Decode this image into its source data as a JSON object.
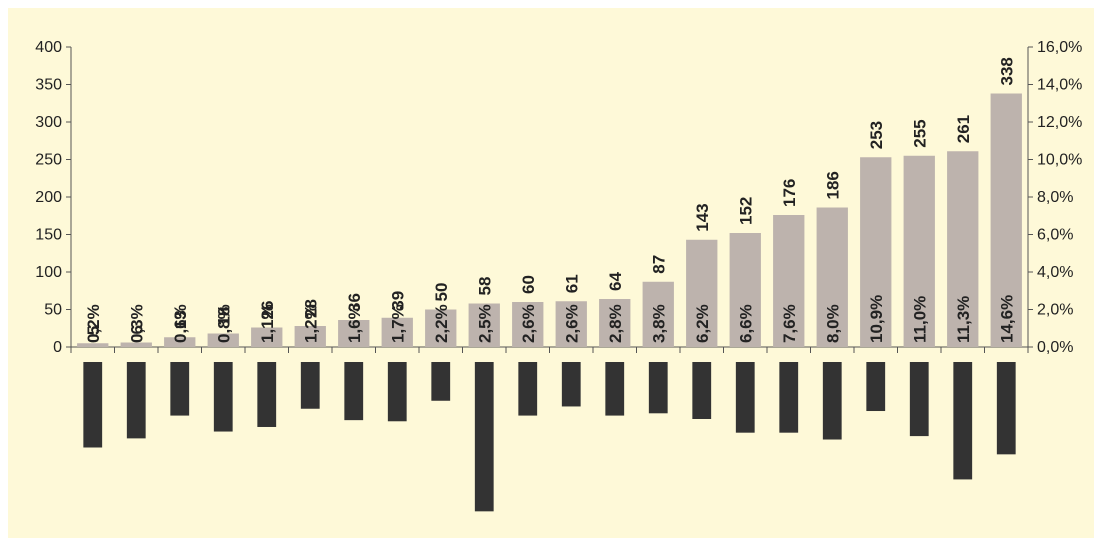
{
  "chart_data": {
    "type": "bar",
    "categories": [
      "",
      "",
      "",
      "",
      "",
      "",
      "",
      "",
      "",
      "",
      "",
      "",
      "",
      "",
      "",
      "",
      "",
      "",
      "",
      "",
      "",
      ""
    ],
    "series": [
      {
        "values": [
          5,
          6,
          13,
          18,
          26,
          28,
          36,
          39,
          50,
          58,
          60,
          61,
          64,
          87,
          143,
          152,
          176,
          186,
          253,
          255,
          261,
          338
        ],
        "color": "#bdb3ad",
        "axis": "left"
      },
      {
        "values": [
          0.2,
          0.3,
          0.6,
          0.8,
          1.1,
          1.2,
          1.6,
          1.7,
          2.2,
          2.5,
          2.6,
          2.6,
          2.8,
          3.8,
          6.2,
          6.6,
          7.6,
          8.0,
          10.9,
          11.0,
          11.3,
          14.6
        ],
        "axis": "right",
        "unit": "%"
      },
      {
        "values": [
          -75,
          -67,
          -47,
          -61,
          -57,
          -41,
          -51,
          -52,
          -34,
          -131,
          -47,
          -39,
          -47,
          -45,
          -50,
          -62,
          -62,
          -68,
          -43,
          -65,
          -103,
          -81
        ],
        "color": "#333333",
        "axis": "none"
      }
    ],
    "value_labels": [
      "5",
      "6",
      "13",
      "18",
      "26",
      "28",
      "36",
      "39",
      "50",
      "58",
      "60",
      "61",
      "64",
      "87",
      "143",
      "152",
      "176",
      "186",
      "253",
      "255",
      "261",
      "338"
    ],
    "pct_labels": [
      "0,2%",
      "0,3%",
      "0,6%",
      "0,8%",
      "1,1%",
      "1,2%",
      "1,6%",
      "1,7%",
      "2,2%",
      "2,5%",
      "2,6%",
      "2,6%",
      "2,8%",
      "3,8%",
      "6,2%",
      "6,6%",
      "7,6%",
      "8,0%",
      "10,9%",
      "11,0%",
      "11,3%",
      "14,6%"
    ],
    "y_left": {
      "ylim": [
        0,
        400
      ],
      "ticks": [
        "0",
        "50",
        "100",
        "150",
        "200",
        "250",
        "300",
        "350",
        "400"
      ]
    },
    "y_right": {
      "ylim": [
        0,
        16
      ],
      "ticks": [
        "0,0%",
        "2,0%",
        "4,0%",
        "6,0%",
        "8,0%",
        "10,0%",
        "12,0%",
        "14,0%",
        "16,0%"
      ]
    },
    "grid": false,
    "legend": "none",
    "colors": {
      "background": "#fef9d8",
      "top_bars": "#bdb3ad",
      "bottom_bars": "#333333",
      "axis": "#555555"
    }
  }
}
